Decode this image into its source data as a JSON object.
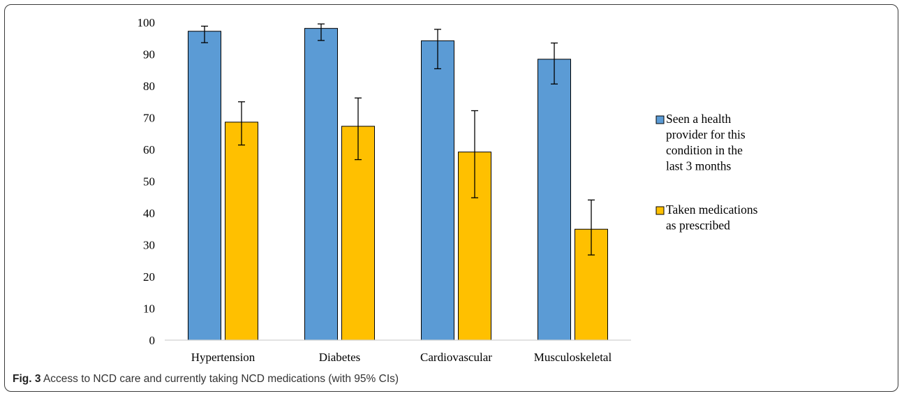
{
  "chart_data": {
    "type": "bar",
    "categories": [
      "Hypertension",
      "Diabetes",
      "Cardiovascular",
      "Musculoskeletal"
    ],
    "series": [
      {
        "name": "Seen a health provider for this condition in the last 3 months",
        "values": [
          97.2,
          98.1,
          94.2,
          88.4
        ],
        "ci_low": [
          93.6,
          94.3,
          85.4,
          80.6
        ],
        "ci_high": [
          98.8,
          99.5,
          97.8,
          93.5
        ],
        "color": "#5b9bd5"
      },
      {
        "name": "Taken medications as prescribed",
        "values": [
          68.6,
          67.3,
          59.2,
          34.9
        ],
        "ci_low": [
          61.4,
          56.8,
          44.8,
          26.8
        ],
        "ci_high": [
          75.0,
          76.2,
          72.2,
          44.1
        ],
        "color": "#ffc000"
      }
    ],
    "ylim": [
      0,
      100
    ],
    "yticks": [
      0,
      10,
      20,
      30,
      40,
      50,
      60,
      70,
      80,
      90,
      100
    ],
    "xlabel": "",
    "ylabel": "",
    "grid": false,
    "legend_position": "right",
    "legend_lines": [
      [
        "Seen a health",
        "provider for this",
        "condition in the",
        "last 3 months"
      ],
      [
        "Taken medications",
        "as prescribed"
      ]
    ]
  },
  "caption": {
    "label": "Fig. 3",
    "text": "Access to NCD care and currently taking NCD medications (with 95% CIs)"
  }
}
